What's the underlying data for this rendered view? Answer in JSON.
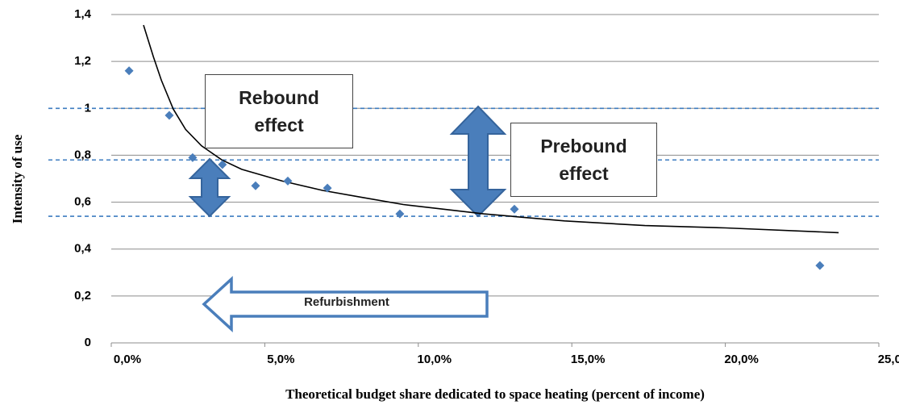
{
  "chart_data": {
    "type": "scatter",
    "x_label": "Theoretical budget share dedicated to space heating (percent of income)",
    "y_label": "Intensity of use",
    "x": [
      0.58,
      1.89,
      2.65,
      3.62,
      4.7,
      5.75,
      7.04,
      9.4,
      13.13,
      23.08
    ],
    "values": [
      1.16,
      0.97,
      0.79,
      0.76,
      0.67,
      0.69,
      0.66,
      0.55,
      0.57,
      0.33
    ],
    "color": "#4a7ebb",
    "trendline": {
      "x": [
        1.05,
        1.37,
        1.63,
        2.02,
        2.42,
        2.94,
        3.6,
        4.25,
        5.57,
        6.88,
        8.19,
        9.51,
        12.13,
        14.76,
        17.38,
        20.01,
        23.69
      ],
      "y": [
        1.355,
        1.22,
        1.12,
        0.997,
        0.91,
        0.84,
        0.78,
        0.74,
        0.69,
        0.65,
        0.62,
        0.59,
        0.55,
        0.52,
        0.5,
        0.49,
        0.47
      ],
      "color": "#000000"
    },
    "reference_lines": [
      1.0,
      0.78,
      0.54
    ],
    "reference_color": "#3d7cc0",
    "annotations": [
      "Rebound effect",
      "Prebound effect",
      "Refurbishment"
    ],
    "xlim": [
      0,
      25
    ],
    "xticks": [
      {
        "value": 0,
        "label": "0,0%"
      },
      {
        "value": 5,
        "label": "5,0%"
      },
      {
        "value": 10,
        "label": "10,0%"
      },
      {
        "value": 15,
        "label": "15,0%"
      },
      {
        "value": 20,
        "label": "20,0%"
      },
      {
        "value": 25,
        "label": "25,0%"
      }
    ],
    "ylim": [
      0,
      1.4
    ],
    "yticks": [
      0,
      {
        "value": 0.2,
        "label": "0,2"
      },
      {
        "value": 0.4,
        "label": "0,4"
      },
      {
        "value": 0.6,
        "label": "0,6"
      },
      {
        "value": 0.8,
        "label": "0,8"
      },
      1,
      {
        "value": 1.2,
        "label": "1,2"
      },
      {
        "value": 1.4,
        "label": "1,4"
      }
    ],
    "grid": true
  }
}
